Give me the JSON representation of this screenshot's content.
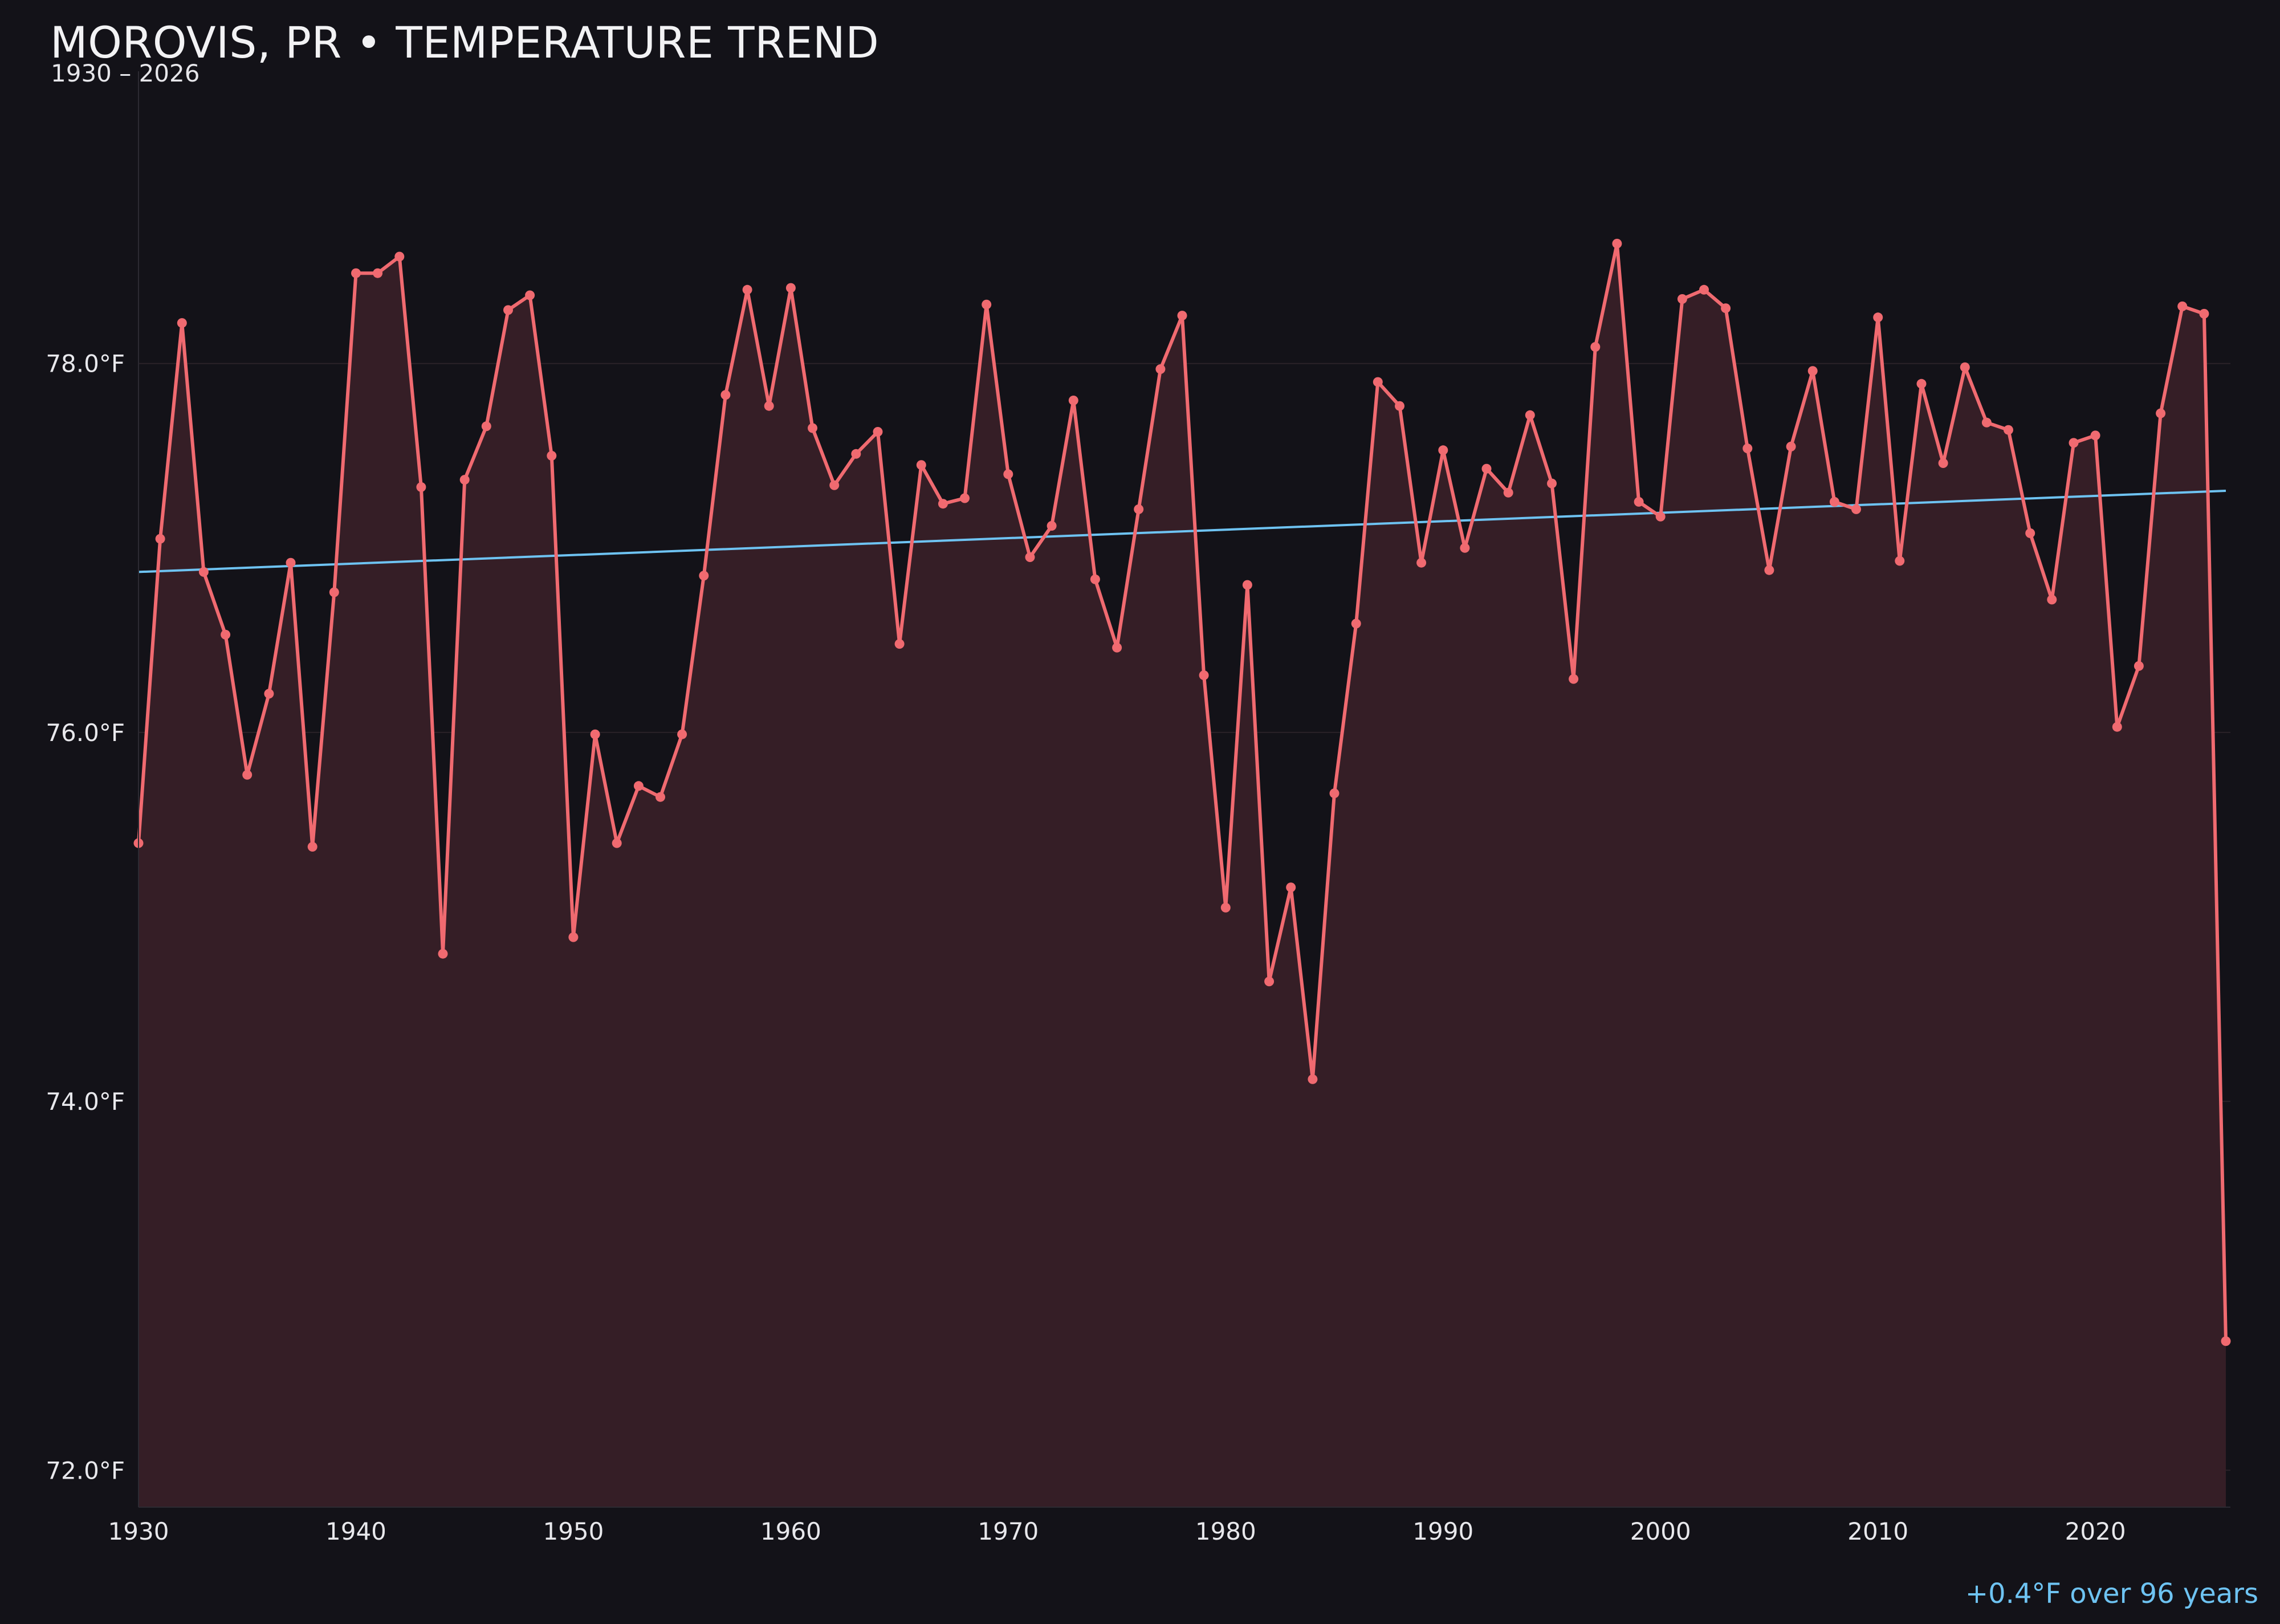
{
  "header": {
    "title": "MOROVIS, PR • TEMPERATURE TREND",
    "subtitle": "1930 – 2026"
  },
  "annotation": "+0.4°F over 96 years",
  "colors": {
    "background": "#131218",
    "line": "#f06a70",
    "fill": "#351e26",
    "trend": "#6ec3f2",
    "grid": "#2a2228",
    "tick_text": "#e8e8ec"
  },
  "chart_data": {
    "type": "line",
    "title": "MOROVIS, PR • TEMPERATURE TREND",
    "subtitle": "1930 – 2026",
    "xlabel": "",
    "ylabel": "",
    "xlim": [
      1930,
      2026
    ],
    "ylim": [
      71.8,
      79.6
    ],
    "grid": true,
    "x_ticks": [
      1930,
      1940,
      1950,
      1960,
      1970,
      1980,
      1990,
      2000,
      2010,
      2020
    ],
    "x_tick_labels": [
      "1930",
      "1940",
      "1950",
      "1960",
      "1970",
      "1980",
      "1990",
      "2000",
      "2010",
      "2020"
    ],
    "y_ticks": [
      72,
      74,
      76,
      78
    ],
    "y_tick_labels": [
      "72.0°F",
      "74.0°F",
      "76.0°F",
      "78.0°F"
    ],
    "series": [
      {
        "x": [
          1930,
          1931,
          1932,
          1933,
          1934,
          1935,
          1936,
          1937,
          1938,
          1939,
          1940,
          1941,
          1942,
          1943,
          1944,
          1945,
          1946,
          1947,
          1948,
          1949,
          1950,
          1951,
          1952,
          1953,
          1954,
          1955,
          1956,
          1957,
          1958,
          1959,
          1960,
          1961,
          1962,
          1963,
          1964,
          1965,
          1966,
          1967,
          1968,
          1969,
          1970,
          1971,
          1972,
          1973,
          1974,
          1975,
          1976,
          1977,
          1978,
          1979,
          1980,
          1981,
          1982,
          1983,
          1984,
          1985,
          1986,
          1987,
          1988,
          1989,
          1990,
          1991,
          1992,
          1993,
          1994,
          1995,
          1996,
          1997,
          1998,
          1999,
          2000,
          2001,
          2002,
          2003,
          2004,
          2005,
          2006,
          2007,
          2008,
          2009,
          2010,
          2011,
          2012,
          2013,
          2014,
          2015,
          2016,
          2017,
          2018,
          2019,
          2020,
          2021,
          2022,
          2023,
          2024,
          2025,
          2026
        ],
        "values": [
          75.4,
          77.05,
          78.22,
          76.87,
          76.53,
          75.77,
          76.21,
          76.92,
          75.38,
          76.76,
          78.49,
          78.49,
          78.58,
          77.33,
          74.8,
          77.37,
          77.66,
          78.29,
          78.37,
          77.5,
          74.89,
          75.99,
          75.4,
          75.71,
          75.65,
          75.99,
          76.85,
          77.83,
          78.4,
          77.77,
          78.41,
          77.65,
          77.34,
          77.51,
          77.63,
          76.48,
          77.45,
          77.24,
          77.27,
          78.32,
          77.4,
          76.95,
          77.12,
          77.8,
          76.83,
          76.46,
          77.21,
          77.97,
          78.26,
          76.31,
          75.05,
          76.8,
          74.65,
          75.16,
          74.12,
          75.67,
          76.59,
          77.9,
          77.77,
          76.92,
          77.53,
          77.0,
          77.43,
          77.3,
          77.72,
          77.35,
          76.29,
          78.09,
          78.65,
          77.25,
          77.17,
          78.35,
          78.4,
          78.3,
          77.54,
          76.88,
          77.55,
          77.96,
          77.25,
          77.21,
          78.25,
          76.93,
          77.89,
          77.46,
          77.98,
          77.68,
          77.64,
          77.08,
          76.72,
          77.57,
          77.61,
          76.03,
          76.36,
          77.73,
          78.31,
          78.27,
          72.7
        ]
      }
    ],
    "trendline": {
      "x": [
        1930,
        2026
      ],
      "values": [
        76.87,
        77.31
      ]
    }
  }
}
